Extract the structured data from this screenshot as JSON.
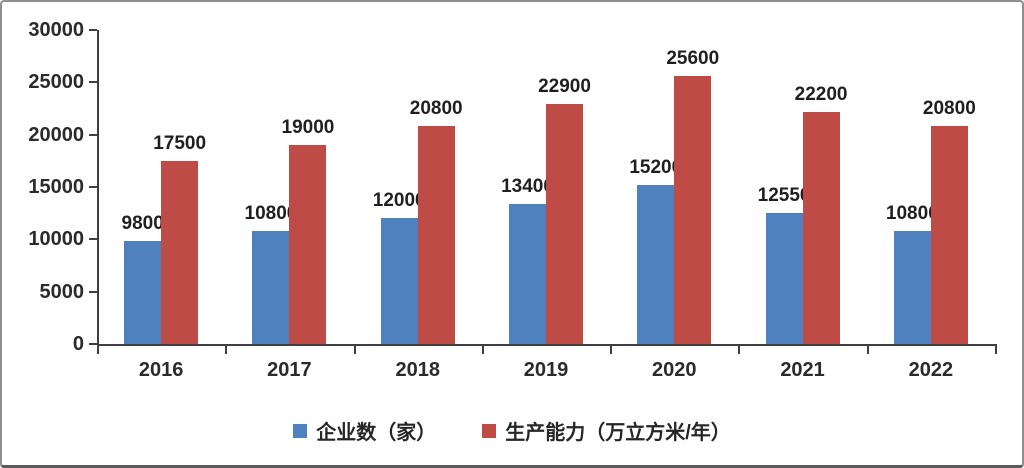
{
  "chart_data": {
    "type": "bar",
    "categories": [
      "2016",
      "2017",
      "2018",
      "2019",
      "2020",
      "2021",
      "2022"
    ],
    "series": [
      {
        "name": "企业数（家）",
        "color": "#4e81bd",
        "values": [
          9800,
          10800,
          12000,
          13400,
          15200,
          12550,
          10800
        ]
      },
      {
        "name": "生产能力（万立方米/年）",
        "color": "#bf4b47",
        "values": [
          17500,
          19000,
          20800,
          22900,
          25600,
          22200,
          20800
        ]
      }
    ],
    "title": "",
    "xlabel": "",
    "ylabel": "",
    "ylim": [
      0,
      30000
    ],
    "ytick_step": 5000,
    "ytick_labels": [
      "0",
      "5000",
      "10000",
      "15000",
      "20000",
      "25000",
      "30000"
    ],
    "grid": false,
    "legend_position": "bottom",
    "data_labels": true,
    "axis_color": "#3f3f3f"
  }
}
